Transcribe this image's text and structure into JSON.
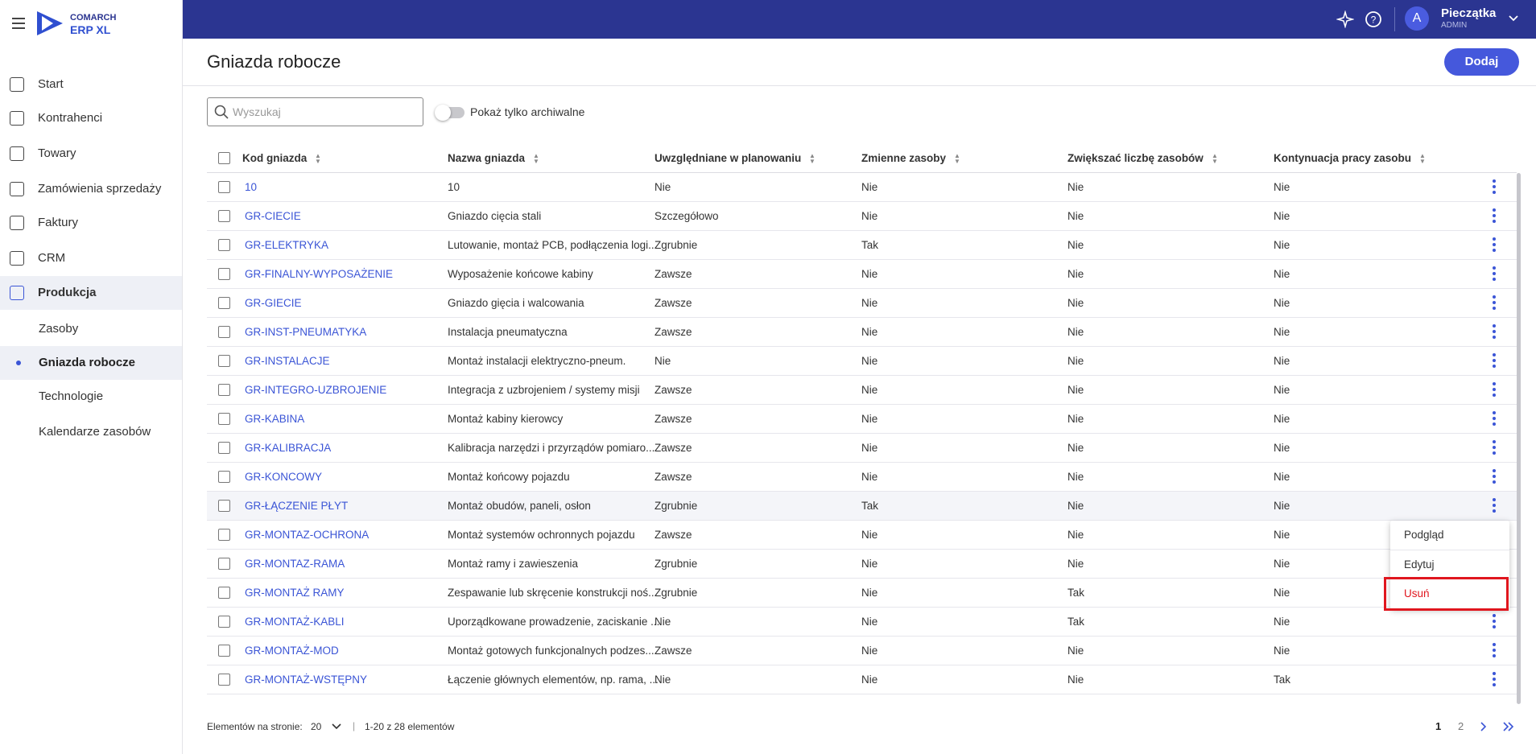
{
  "header": {
    "brand_top": "COMARCH",
    "brand_bottom": "ERP XL",
    "avatar": "A",
    "user_name": "Pieczątka",
    "user_role": "ADMIN"
  },
  "sidebar": {
    "items": [
      "Start",
      "Kontrahenci",
      "Towary",
      "Zamówienia sprzedaży",
      "Faktury",
      "CRM",
      "Produkcja"
    ],
    "subitems": [
      "Zasoby",
      "Gniazda robocze",
      "Technologie",
      "Kalendarze zasobów"
    ]
  },
  "page": {
    "title": "Gniazda robocze",
    "add_button": "Dodaj",
    "search_placeholder": "Wyszukaj",
    "archive_toggle": "Pokaż tylko archiwalne"
  },
  "table": {
    "columns": [
      "Kod gniazda",
      "Nazwa gniazda",
      "Uwzględniane w planowaniu",
      "Zmienne zasoby",
      "Zwiększać liczbę zasobów",
      "Kontynuacja pracy zasobu"
    ],
    "rows": [
      [
        "10",
        "10",
        "Nie",
        "Nie",
        "Nie",
        "Nie"
      ],
      [
        "GR-CIECIE",
        "Gniazdo cięcia stali",
        "Szczegółowo",
        "Nie",
        "Nie",
        "Nie"
      ],
      [
        "GR-ELEKTRYKA",
        "Lutowanie, montaż PCB, podłączenia logi...",
        "Zgrubnie",
        "Tak",
        "Nie",
        "Nie"
      ],
      [
        "GR-FINALNY-WYPOSAŻENIE",
        "Wyposażenie końcowe kabiny",
        "Zawsze",
        "Nie",
        "Nie",
        "Nie"
      ],
      [
        "GR-GIECIE",
        "Gniazdo gięcia i walcowania",
        "Zawsze",
        "Nie",
        "Nie",
        "Nie"
      ],
      [
        "GR-INST-PNEUMATYKA",
        "Instalacja pneumatyczna",
        "Zawsze",
        "Nie",
        "Nie",
        "Nie"
      ],
      [
        "GR-INSTALACJE",
        "Montaż instalacji elektryczno-pneum.",
        "Nie",
        "Nie",
        "Nie",
        "Nie"
      ],
      [
        "GR-INTEGRO-UZBROJENIE",
        "Integracja z uzbrojeniem / systemy misji",
        "Zawsze",
        "Nie",
        "Nie",
        "Nie"
      ],
      [
        "GR-KABINA",
        "Montaż kabiny kierowcy",
        "Zawsze",
        "Nie",
        "Nie",
        "Nie"
      ],
      [
        "GR-KALIBRACJA",
        "Kalibracja narzędzi i przyrządów pomiaro...",
        "Zawsze",
        "Nie",
        "Nie",
        "Nie"
      ],
      [
        "GR-KONCOWY",
        "Montaż końcowy pojazdu",
        "Zawsze",
        "Nie",
        "Nie",
        "Nie"
      ],
      [
        "GR-ŁĄCZENIE PŁYT",
        "Montaż obudów, paneli, osłon",
        "Zgrubnie",
        "Tak",
        "Nie",
        "Nie"
      ],
      [
        "GR-MONTAZ-OCHRONA",
        "Montaż systemów ochronnych pojazdu",
        "Zawsze",
        "Nie",
        "Nie",
        "Nie"
      ],
      [
        "GR-MONTAZ-RAMA",
        "Montaż ramy i zawieszenia",
        "Zgrubnie",
        "Nie",
        "Nie",
        "Nie"
      ],
      [
        "GR-MONTAŻ RAMY",
        "Zespawanie lub skręcenie konstrukcji noś...",
        "Zgrubnie",
        "Nie",
        "Tak",
        "Nie"
      ],
      [
        "GR-MONTAŻ-KABLI",
        "Uporządkowane prowadzenie, zaciskanie ...",
        "Nie",
        "Nie",
        "Tak",
        "Nie"
      ],
      [
        "GR-MONTAŻ-MOD",
        "Montaż gotowych funkcjonalnych podzes...",
        "Zawsze",
        "Nie",
        "Nie",
        "Nie"
      ],
      [
        "GR-MONTAŻ-WSTĘPNY",
        "Łączenie głównych elementów, np. rama, ...",
        "Nie",
        "Nie",
        "Nie",
        "Tak"
      ]
    ]
  },
  "context_menu": {
    "items": [
      "Podgląd",
      "Edytuj",
      "Usuń"
    ]
  },
  "footer": {
    "per_page_label": "Elementów na stronie:",
    "per_page": 20,
    "range": "1-20 z 28 elementów",
    "pages": [
      1,
      2
    ]
  }
}
